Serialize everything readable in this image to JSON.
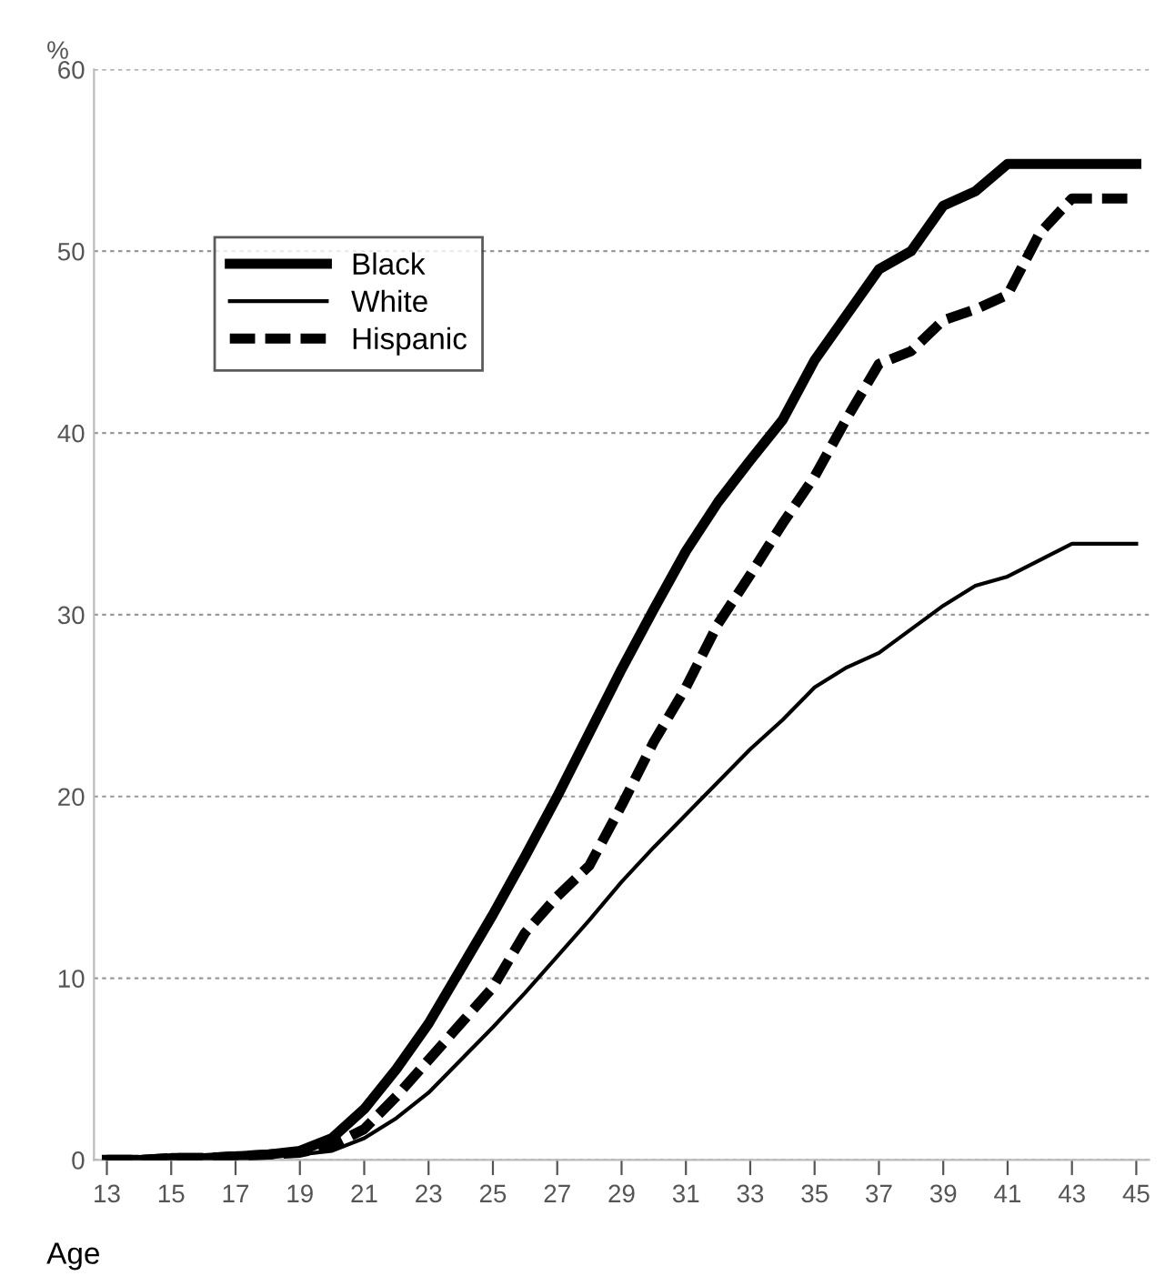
{
  "chart_data": {
    "type": "line",
    "xlabel": "Age",
    "ylabel": "%",
    "x": [
      13,
      14,
      15,
      16,
      17,
      18,
      19,
      20,
      21,
      22,
      23,
      24,
      25,
      26,
      27,
      28,
      29,
      30,
      31,
      32,
      33,
      34,
      35,
      36,
      37,
      38,
      39,
      40,
      41,
      42,
      43,
      44,
      45
    ],
    "series": [
      {
        "name": "Black",
        "color": "#000000",
        "line_style": "solid",
        "values": [
          0,
          0,
          0.1,
          0.1,
          0.2,
          0.3,
          0.5,
          1.2,
          2.8,
          5,
          7.5,
          10.5,
          13.5,
          16.7,
          20,
          23.5,
          27,
          30.3,
          33.5,
          36.2,
          38.5,
          40.7,
          44,
          46.5,
          49,
          50,
          52.5,
          53.3,
          54.8,
          54.8,
          54.8,
          54.8,
          54.8
        ]
      },
      {
        "name": "White",
        "color": "#000000",
        "line_style": "solid",
        "values": [
          0,
          0,
          0,
          0.1,
          0.1,
          0.2,
          0.3,
          0.5,
          1.2,
          2.3,
          3.7,
          5.5,
          7.3,
          9.2,
          11.2,
          13.2,
          15.3,
          17.2,
          19,
          20.8,
          22.6,
          24.2,
          26,
          27.1,
          27.9,
          29.2,
          30.5,
          31.6,
          32.1,
          33,
          33.9,
          33.9,
          33.9
        ]
      },
      {
        "name": "Hispanic",
        "color": "#000000",
        "line_style": "dashed",
        "values": [
          0,
          0,
          0.1,
          0.1,
          0.2,
          0.3,
          0.4,
          0.8,
          1.7,
          3.5,
          5.5,
          7.5,
          9.5,
          12.5,
          14.5,
          16.2,
          19.5,
          23,
          26,
          29.5,
          32.2,
          35,
          37.6,
          40.8,
          43.8,
          44.5,
          46.2,
          46.8,
          47.6,
          51,
          52.9,
          52.9,
          52.9
        ]
      }
    ],
    "xlim": [
      12.6,
      45.4
    ],
    "xticks": [
      13,
      15,
      17,
      19,
      21,
      23,
      25,
      27,
      29,
      31,
      33,
      35,
      37,
      39,
      41,
      43,
      45
    ],
    "ylim": [
      0,
      60
    ],
    "yticks": [
      0,
      10,
      20,
      30,
      40,
      50,
      60
    ],
    "grid": "y",
    "legend": "top left",
    "marker": "none"
  }
}
